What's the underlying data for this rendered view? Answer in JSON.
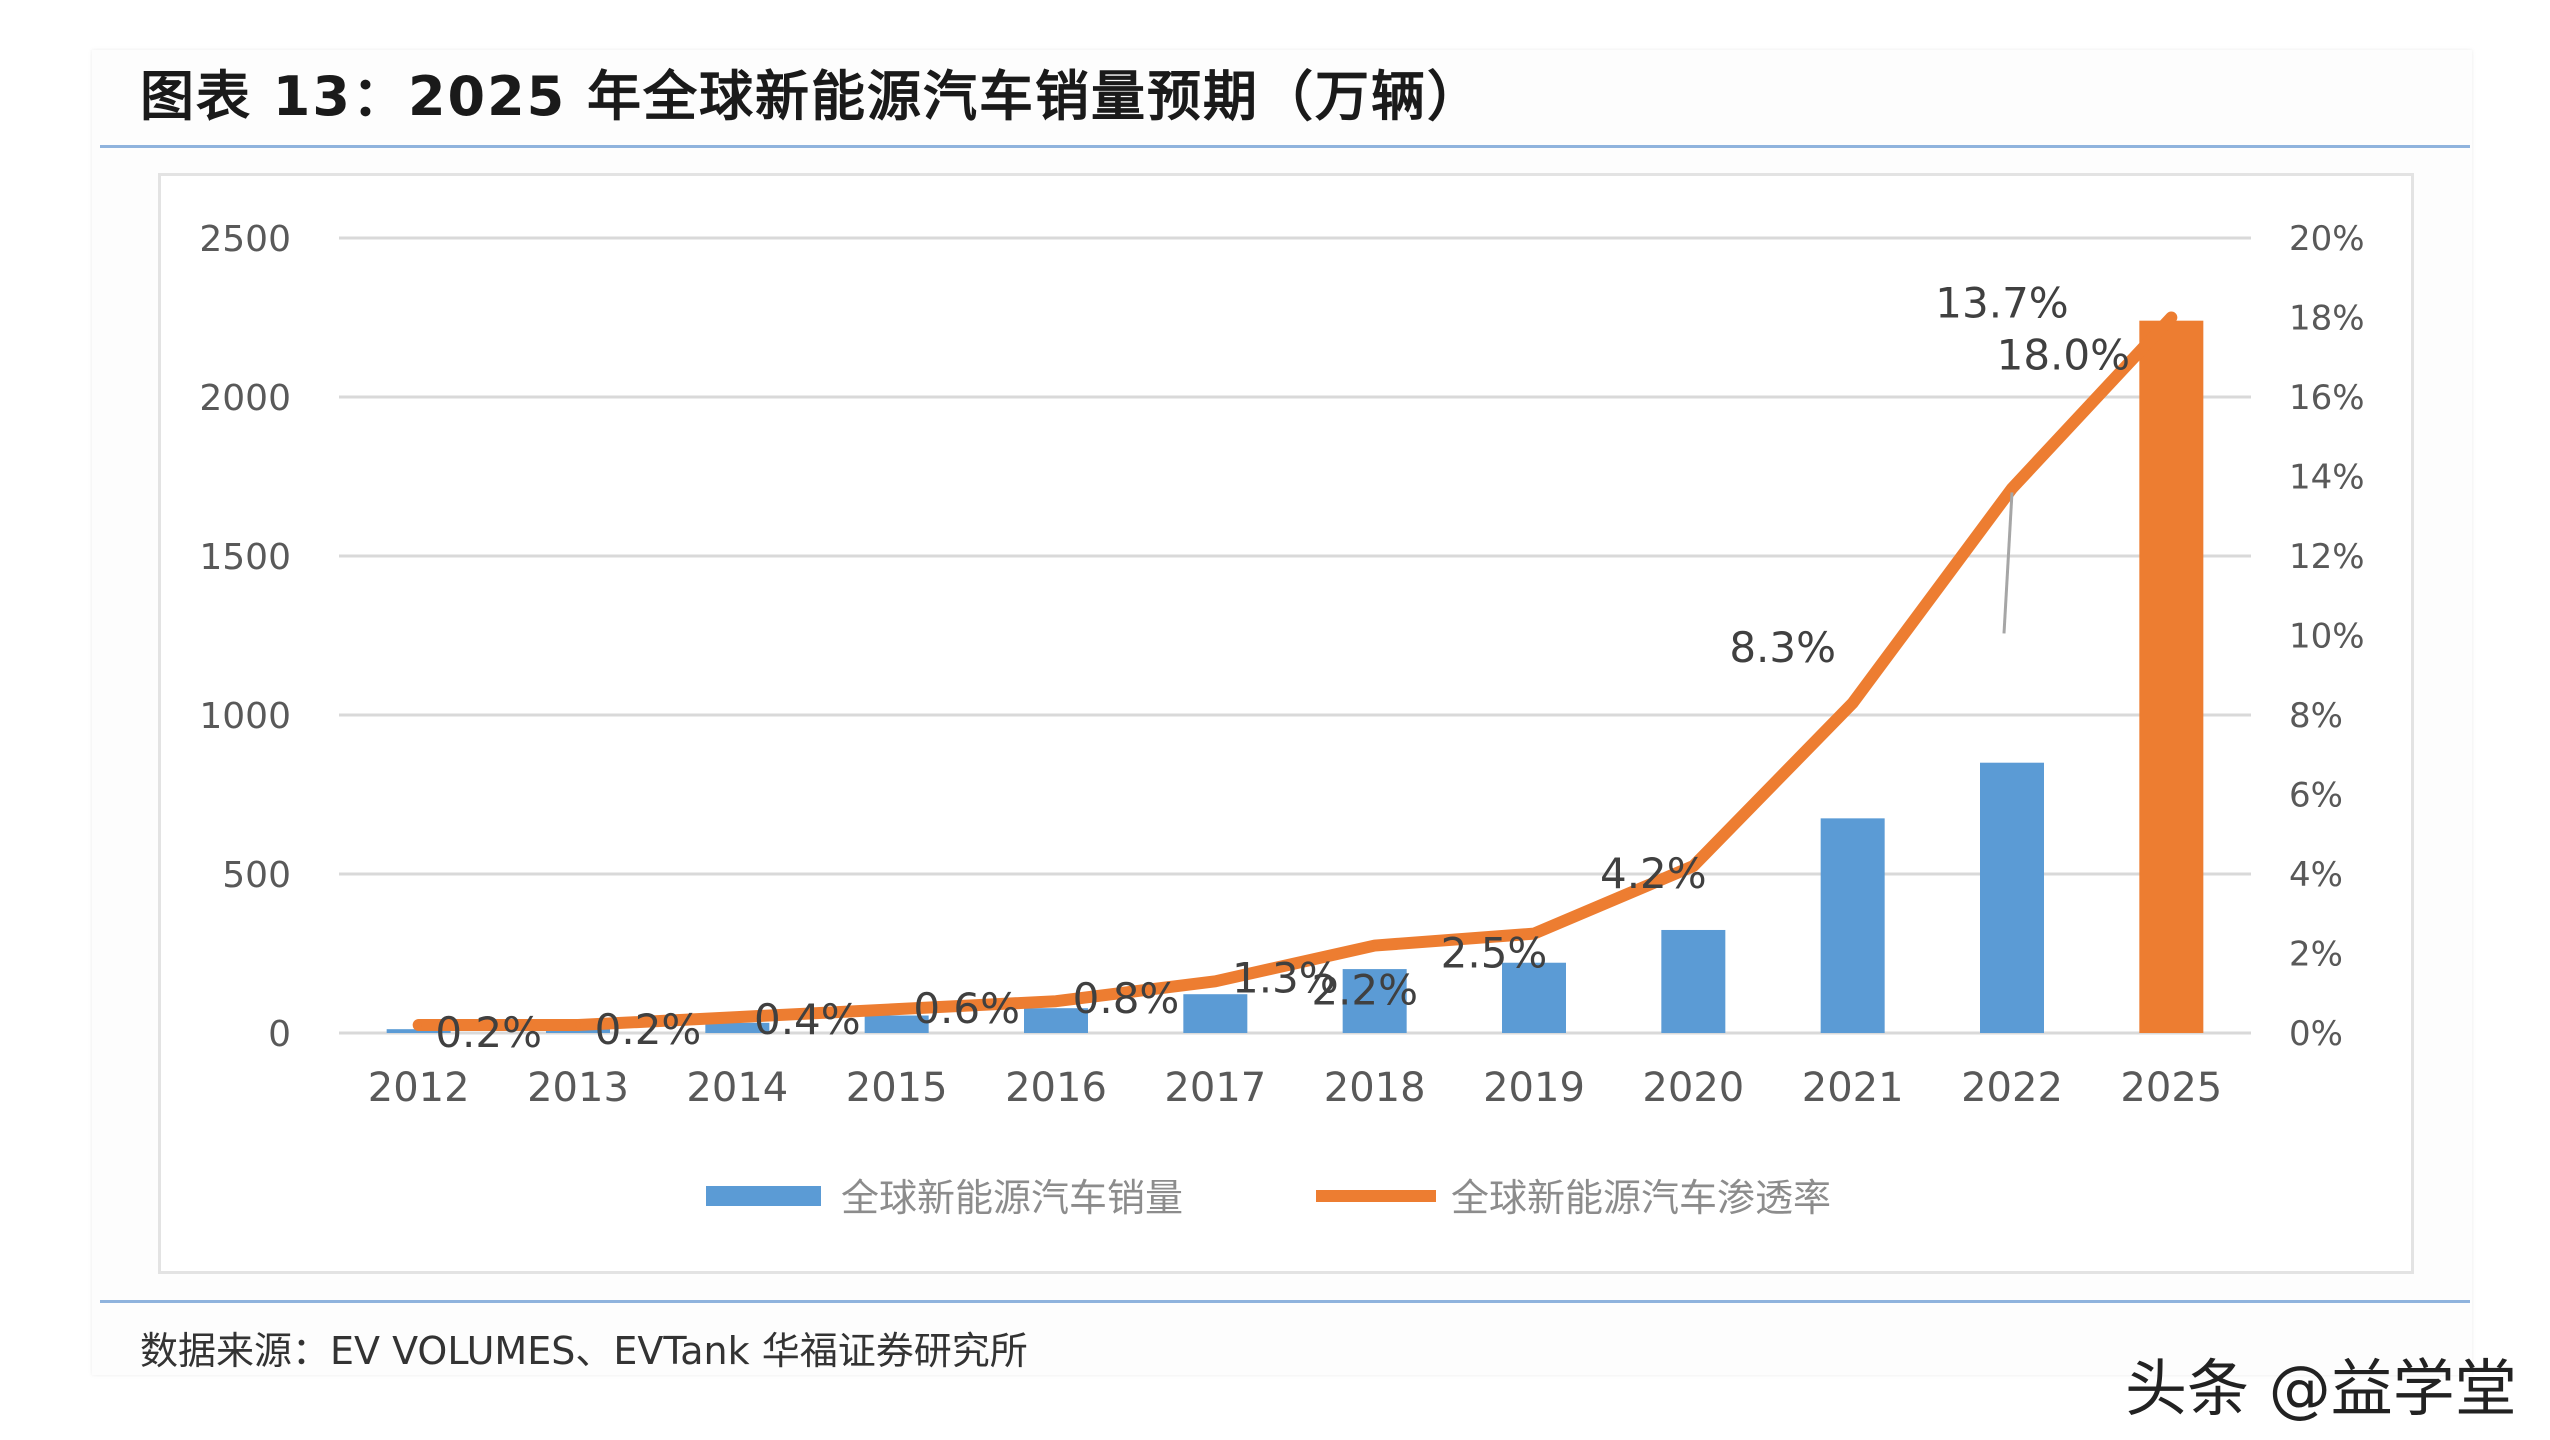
{
  "title": "图表 13：2025 年全球新能源汽车销量预期（万辆）",
  "source": "数据来源：EV VOLUMES、EVTank 华福证券研究所",
  "watermark": "头条 @益学堂",
  "colors": {
    "bar": "#5b9bd5",
    "bar_highlight": "#ed7d31",
    "line": "#ed7d31",
    "grid": "#d9d9d9",
    "axis_text": "#595959"
  },
  "chart_data": {
    "type": "bar",
    "title": "",
    "categories": [
      "2012",
      "2013",
      "2014",
      "2015",
      "2016",
      "2017",
      "2018",
      "2019",
      "2020",
      "2021",
      "2022",
      "2025"
    ],
    "series": [
      {
        "name": "全球新能源汽车销量",
        "type": "bar",
        "axis": "left",
        "values": [
          12,
          20,
          32,
          55,
          78,
          122,
          201,
          221,
          324,
          675,
          850,
          2240
        ],
        "highlight_index": 11
      },
      {
        "name": "全球新能源汽车渗透率",
        "type": "line",
        "axis": "right",
        "values": [
          0.2,
          0.2,
          0.4,
          0.6,
          0.8,
          1.3,
          2.2,
          2.5,
          4.2,
          8.3,
          13.7,
          18.0
        ],
        "labels": [
          "0.2%",
          "0.2%",
          "0.4%",
          "0.6%",
          "0.8%",
          "1.3%",
          "2.2%",
          "2.5%",
          "4.2%",
          "8.3%",
          "13.7%",
          "18.0%"
        ]
      }
    ],
    "y_left": {
      "ylim": [
        0,
        2500
      ],
      "ticks": [
        "0",
        "500",
        "1000",
        "1500",
        "2000",
        "2500"
      ]
    },
    "y_right": {
      "ylim": [
        0,
        20
      ],
      "ticks": [
        "0%",
        "2%",
        "4%",
        "6%",
        "8%",
        "10%",
        "12%",
        "14%",
        "16%",
        "18%",
        "20%"
      ]
    },
    "grid": true,
    "legend": "bottom"
  }
}
